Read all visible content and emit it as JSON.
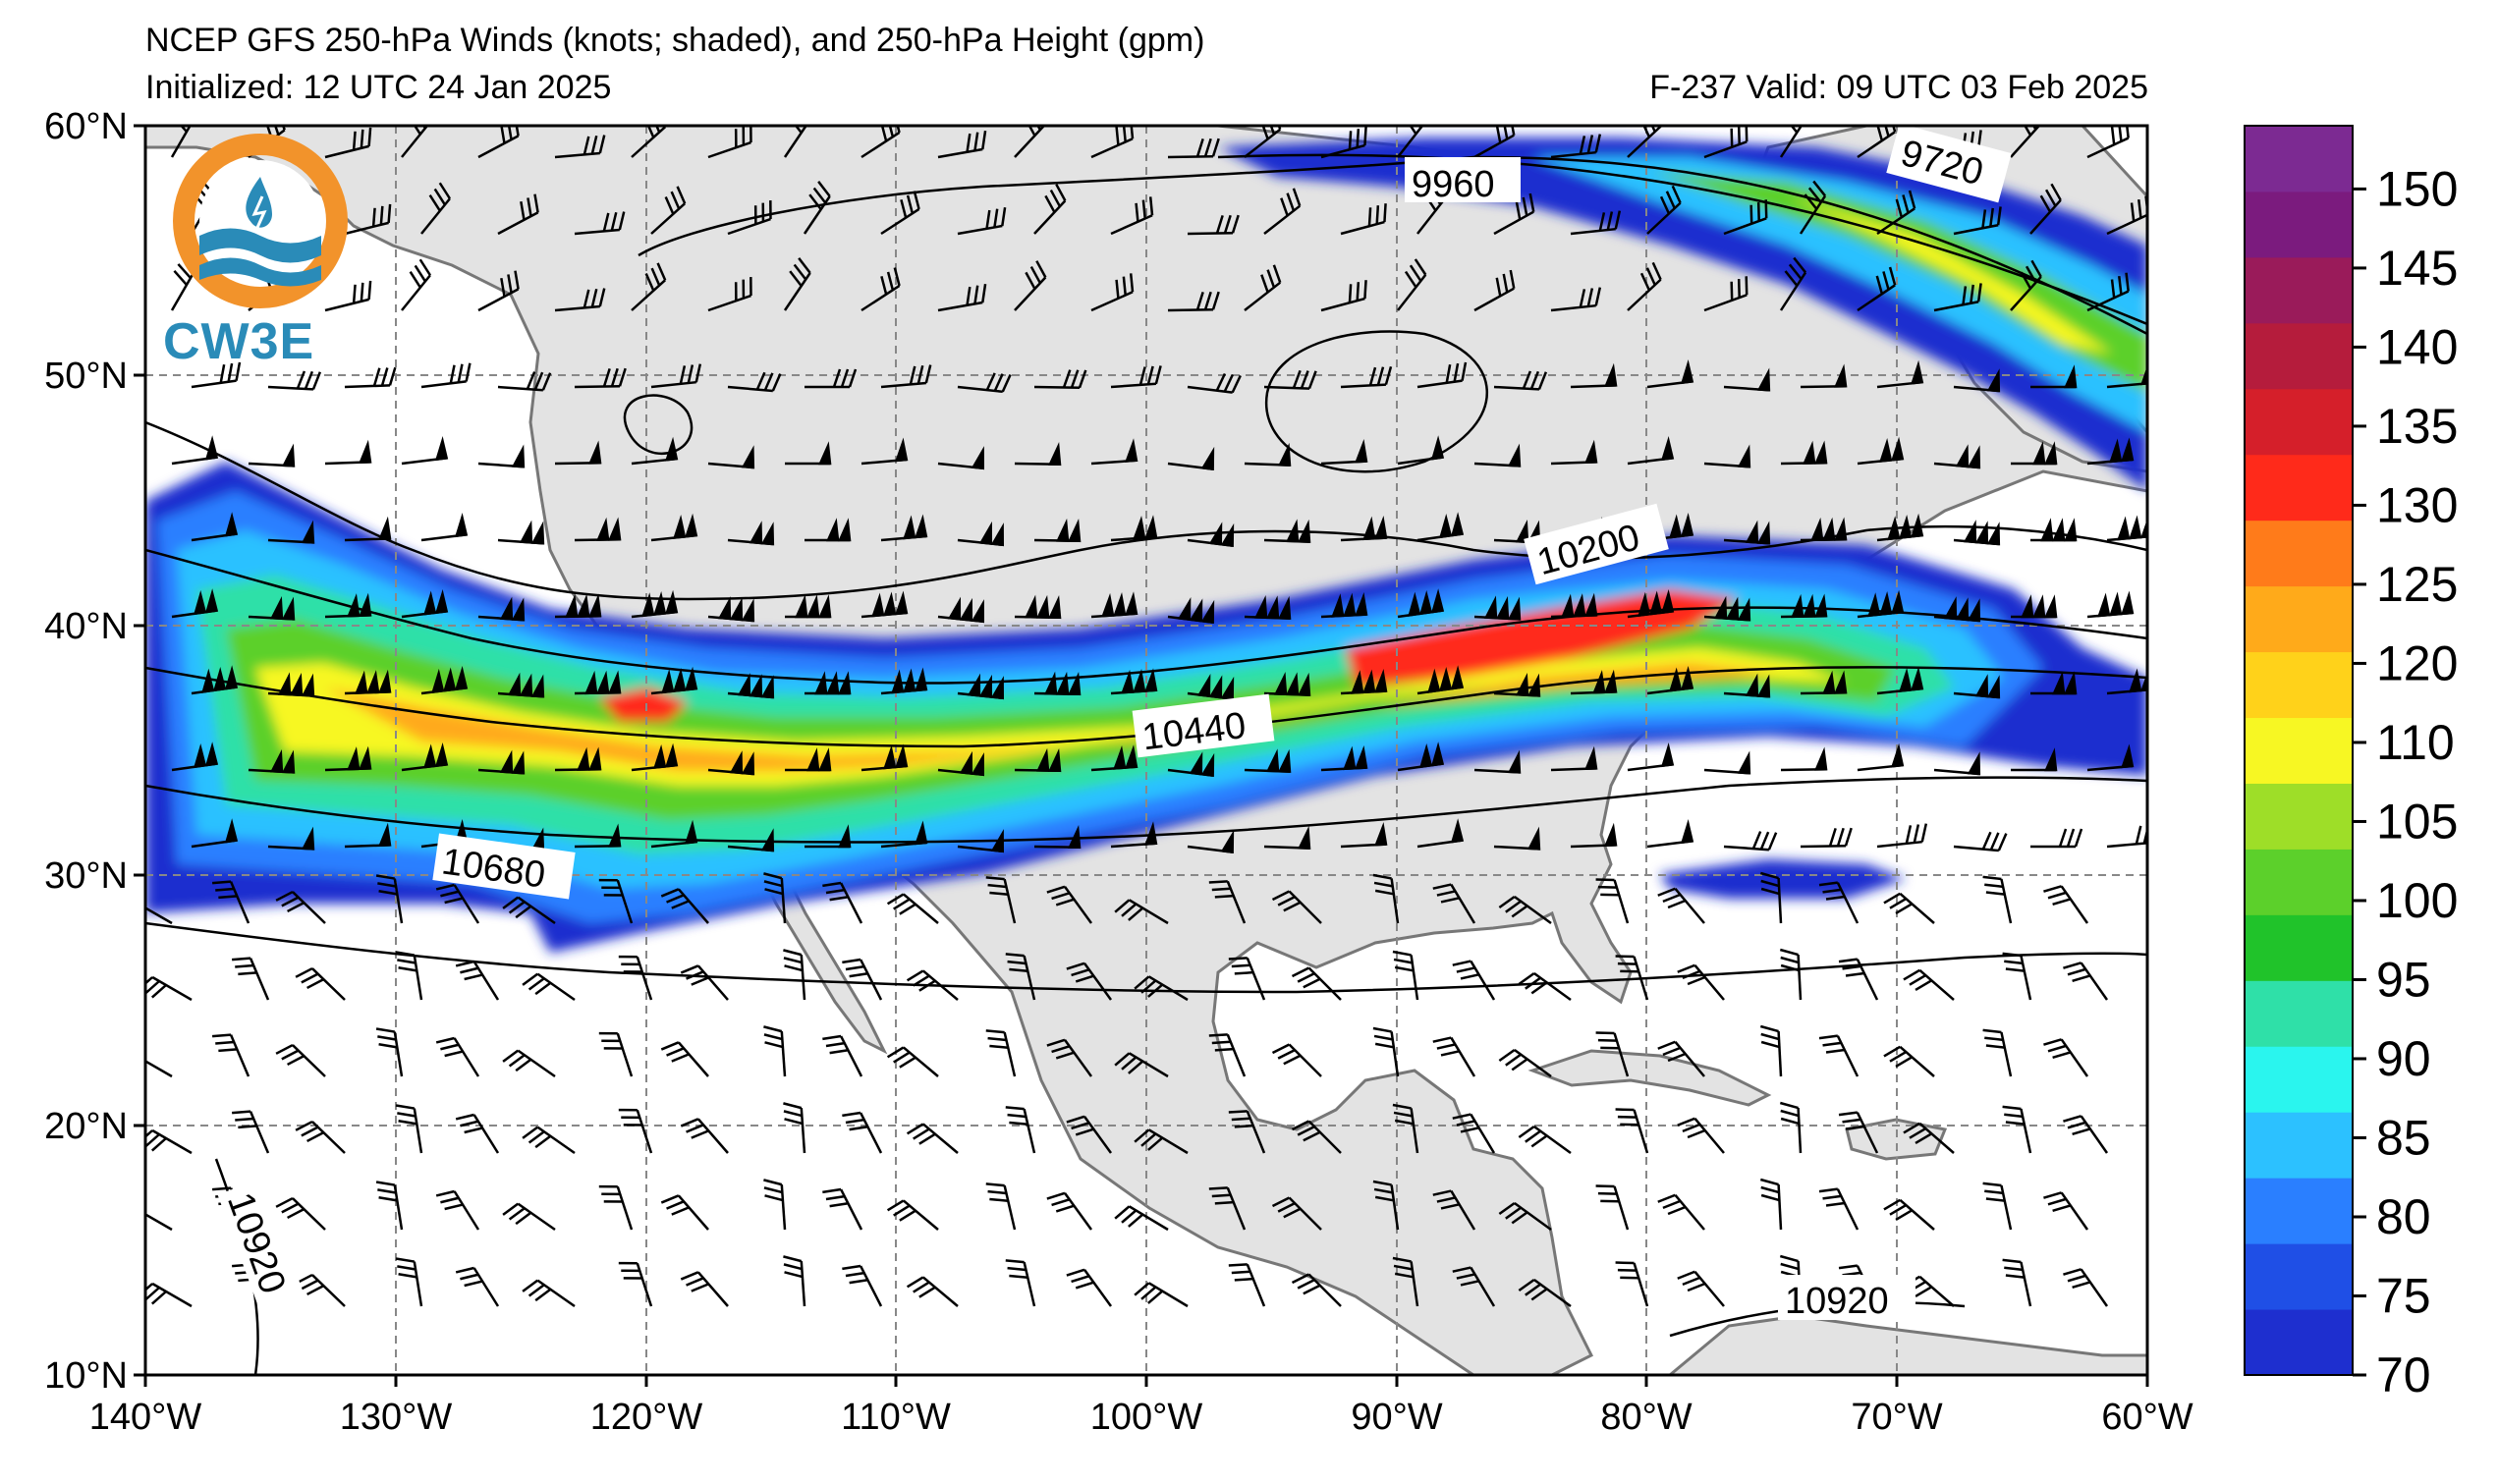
{
  "header": {
    "title": "NCEP GFS 250-hPa Winds (knots; shaded), and 250-hPa Height (gpm)",
    "initialized": "Initialized: 12 UTC 24 Jan 2025",
    "valid": "F-237  Valid: 09 UTC 03 Feb 2025"
  },
  "logo": {
    "text": "CW3E",
    "colors": {
      "ring": "#f2932b",
      "wave": "#2a8bb8"
    }
  },
  "axes": {
    "lon_labels": [
      "140°W",
      "130°W",
      "120°W",
      "110°W",
      "100°W",
      "90°W",
      "80°W",
      "70°W",
      "60°W"
    ],
    "lat_labels": [
      "60°N",
      "50°N",
      "40°N",
      "30°N",
      "20°N",
      "10°N"
    ],
    "lon_range": [
      -140,
      -60
    ],
    "lat_range": [
      10,
      60
    ]
  },
  "contours": {
    "labels": [
      "9720",
      "9960",
      "10200",
      "10440",
      "10680",
      "10920",
      "10920"
    ]
  },
  "colorbar": {
    "ticks": [
      "70",
      "75",
      "80",
      "85",
      "90",
      "95",
      "100",
      "105",
      "110",
      "120",
      "125",
      "130",
      "135",
      "140",
      "145",
      "150"
    ],
    "colors": [
      "#1e2fcf",
      "#1f4fe6",
      "#2a7fff",
      "#2cc1ff",
      "#2af5ee",
      "#2fe0a8",
      "#20c32a",
      "#5cd02b",
      "#9ede28",
      "#f7f723",
      "#ffd21a",
      "#ffaa1a",
      "#ff7b1a",
      "#ff2a1a",
      "#d51f2a",
      "#b51c3c",
      "#9a1b5a",
      "#7b1b7e",
      "#7c2a92"
    ]
  },
  "chart_data": {
    "type": "heatmap",
    "title": "NCEP GFS 250-hPa Winds (knots; shaded), and 250-hPa Height (gpm)",
    "colorbar_units": "knots",
    "lon_range": [
      -140,
      -60
    ],
    "lat_range": [
      10,
      60
    ],
    "jet_core_max_knots": 130
  }
}
